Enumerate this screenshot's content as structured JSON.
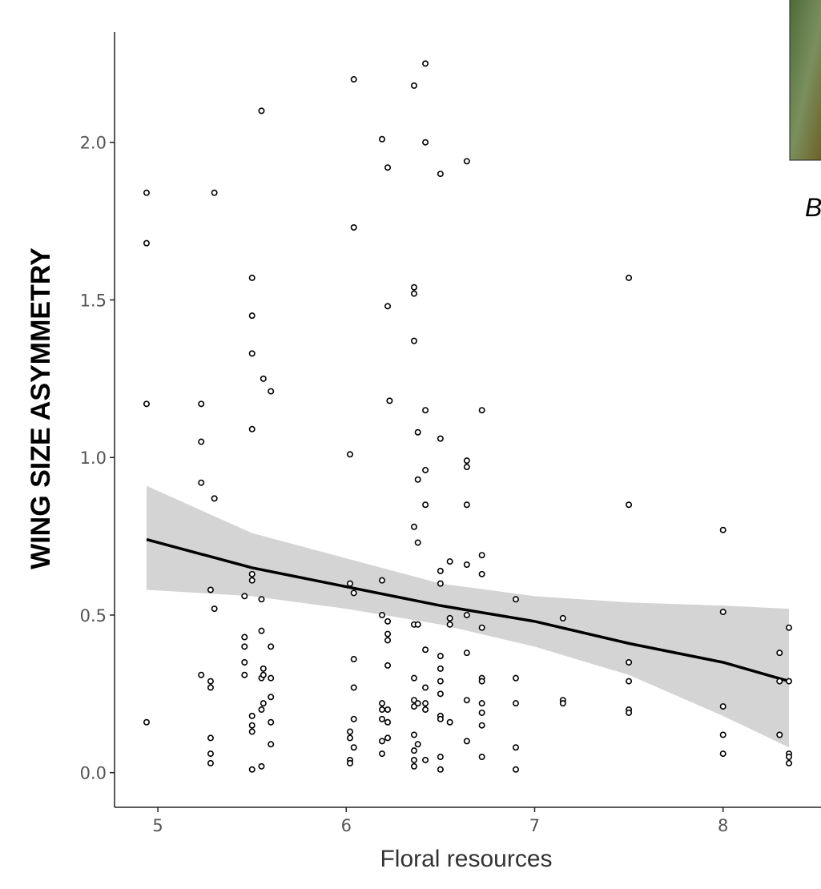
{
  "chart_data": {
    "type": "scatter",
    "panel_label": "B",
    "x_label": "Floral resources",
    "y_label": "WING SIZE ASYMMETRY",
    "xlim": [
      4.77,
      8.52
    ],
    "ylim": [
      -0.11,
      2.35
    ],
    "xticks": [
      5,
      6,
      7,
      8
    ],
    "yticks": [
      {
        "value": 0,
        "label": "0.0"
      },
      0.5,
      {
        "value": 1,
        "label": "1.0"
      },
      1.5,
      {
        "value": 2,
        "label": "2.0"
      }
    ],
    "x": [
      4.94,
      4.94,
      4.94,
      4.94,
      5.23,
      5.23,
      5.23,
      5.23,
      5.28,
      5.28,
      5.28,
      5.28,
      5.28,
      5.28,
      5.3,
      5.3,
      5.3,
      5.46,
      5.46,
      5.46,
      5.46,
      5.46,
      5.5,
      5.5,
      5.5,
      5.5,
      5.5,
      5.5,
      5.5,
      5.5,
      5.5,
      5.5,
      5.55,
      5.55,
      5.55,
      5.55,
      5.55,
      5.55,
      5.56,
      5.56,
      5.56,
      5.56,
      5.6,
      5.6,
      5.6,
      5.6,
      5.6,
      5.6,
      6.02,
      6.02,
      6.02,
      6.02,
      6.02,
      6.02,
      6.04,
      6.04,
      6.04,
      6.04,
      6.04,
      6.04,
      6.04,
      6.19,
      6.19,
      6.19,
      6.19,
      6.19,
      6.19,
      6.19,
      6.19,
      6.22,
      6.22,
      6.22,
      6.22,
      6.22,
      6.22,
      6.22,
      6.22,
      6.22,
      6.23,
      6.36,
      6.36,
      6.36,
      6.36,
      6.36,
      6.36,
      6.36,
      6.36,
      6.36,
      6.36,
      6.36,
      6.36,
      6.36,
      6.38,
      6.38,
      6.38,
      6.38,
      6.38,
      6.38,
      6.42,
      6.42,
      6.42,
      6.42,
      6.42,
      6.42,
      6.42,
      6.42,
      6.42,
      6.42,
      6.5,
      6.5,
      6.5,
      6.5,
      6.5,
      6.5,
      6.5,
      6.5,
      6.5,
      6.5,
      6.5,
      6.5,
      6.55,
      6.55,
      6.55,
      6.55,
      6.64,
      6.64,
      6.64,
      6.64,
      6.64,
      6.64,
      6.64,
      6.64,
      6.64,
      6.72,
      6.72,
      6.72,
      6.72,
      6.72,
      6.72,
      6.72,
      6.72,
      6.72,
      6.72,
      6.9,
      6.9,
      6.9,
      6.9,
      6.9,
      7.15,
      7.15,
      7.15,
      7.5,
      7.5,
      7.5,
      7.5,
      7.5,
      7.5,
      8.0,
      8.0,
      8.0,
      8.0,
      8.0,
      8.3,
      8.3,
      8.3,
      8.35,
      8.35,
      8.35,
      8.35,
      8.35
    ],
    "values": [
      1.84,
      1.68,
      1.17,
      0.16,
      1.17,
      1.05,
      0.92,
      0.31,
      0.58,
      0.29,
      0.27,
      0.11,
      0.06,
      0.03,
      1.84,
      0.87,
      0.52,
      0.43,
      0.4,
      0.35,
      0.31,
      0.56,
      1.57,
      1.45,
      1.33,
      1.09,
      0.63,
      0.61,
      0.18,
      0.15,
      0.13,
      0.01,
      2.1,
      0.45,
      0.3,
      0.2,
      0.02,
      0.55,
      1.25,
      0.33,
      0.31,
      0.22,
      1.21,
      0.4,
      0.3,
      0.24,
      0.16,
      0.09,
      1.01,
      0.6,
      0.13,
      0.11,
      0.04,
      0.03,
      2.2,
      1.73,
      0.57,
      0.36,
      0.27,
      0.17,
      0.08,
      2.01,
      0.61,
      0.5,
      0.22,
      0.2,
      0.17,
      0.1,
      0.06,
      1.92,
      1.48,
      0.48,
      0.44,
      0.42,
      0.34,
      0.2,
      0.16,
      0.11,
      1.18,
      2.18,
      1.54,
      1.52,
      1.37,
      0.78,
      0.47,
      0.3,
      0.23,
      0.21,
      0.12,
      0.07,
      0.04,
      0.02,
      1.08,
      0.93,
      0.73,
      0.47,
      0.22,
      0.09,
      2.25,
      2.0,
      1.15,
      0.96,
      0.85,
      0.39,
      0.27,
      0.22,
      0.2,
      0.04,
      1.9,
      1.06,
      0.64,
      0.6,
      0.37,
      0.33,
      0.29,
      0.25,
      0.18,
      0.17,
      0.05,
      0.01,
      0.67,
      0.49,
      0.47,
      0.16,
      1.94,
      0.99,
      0.97,
      0.85,
      0.66,
      0.5,
      0.38,
      0.23,
      0.1,
      1.15,
      0.69,
      0.63,
      0.46,
      0.3,
      0.29,
      0.22,
      0.19,
      0.15,
      0.05,
      0.55,
      0.3,
      0.22,
      0.08,
      0.01,
      0.49,
      0.23,
      0.22,
      1.57,
      0.85,
      0.35,
      0.29,
      0.2,
      0.19,
      0.77,
      0.51,
      0.21,
      0.12,
      0.06,
      0.38,
      0.29,
      0.12,
      0.46,
      0.29,
      0.06,
      0.05,
      0.03
    ],
    "fit": {
      "x": [
        4.94,
        5.5,
        6,
        6.5,
        7,
        7.5,
        8,
        8.35
      ],
      "values": [
        0.74,
        0.65,
        0.59,
        0.53,
        0.48,
        0.41,
        0.35,
        0.29
      ],
      "lower": [
        0.58,
        0.56,
        0.52,
        0.47,
        0.4,
        0.31,
        0.18,
        0.08
      ],
      "upper": [
        0.91,
        0.76,
        0.68,
        0.6,
        0.56,
        0.54,
        0.53,
        0.52
      ]
    },
    "band_color": "#d4d4d4",
    "line_color": "#000000",
    "point_color": "#000000"
  }
}
